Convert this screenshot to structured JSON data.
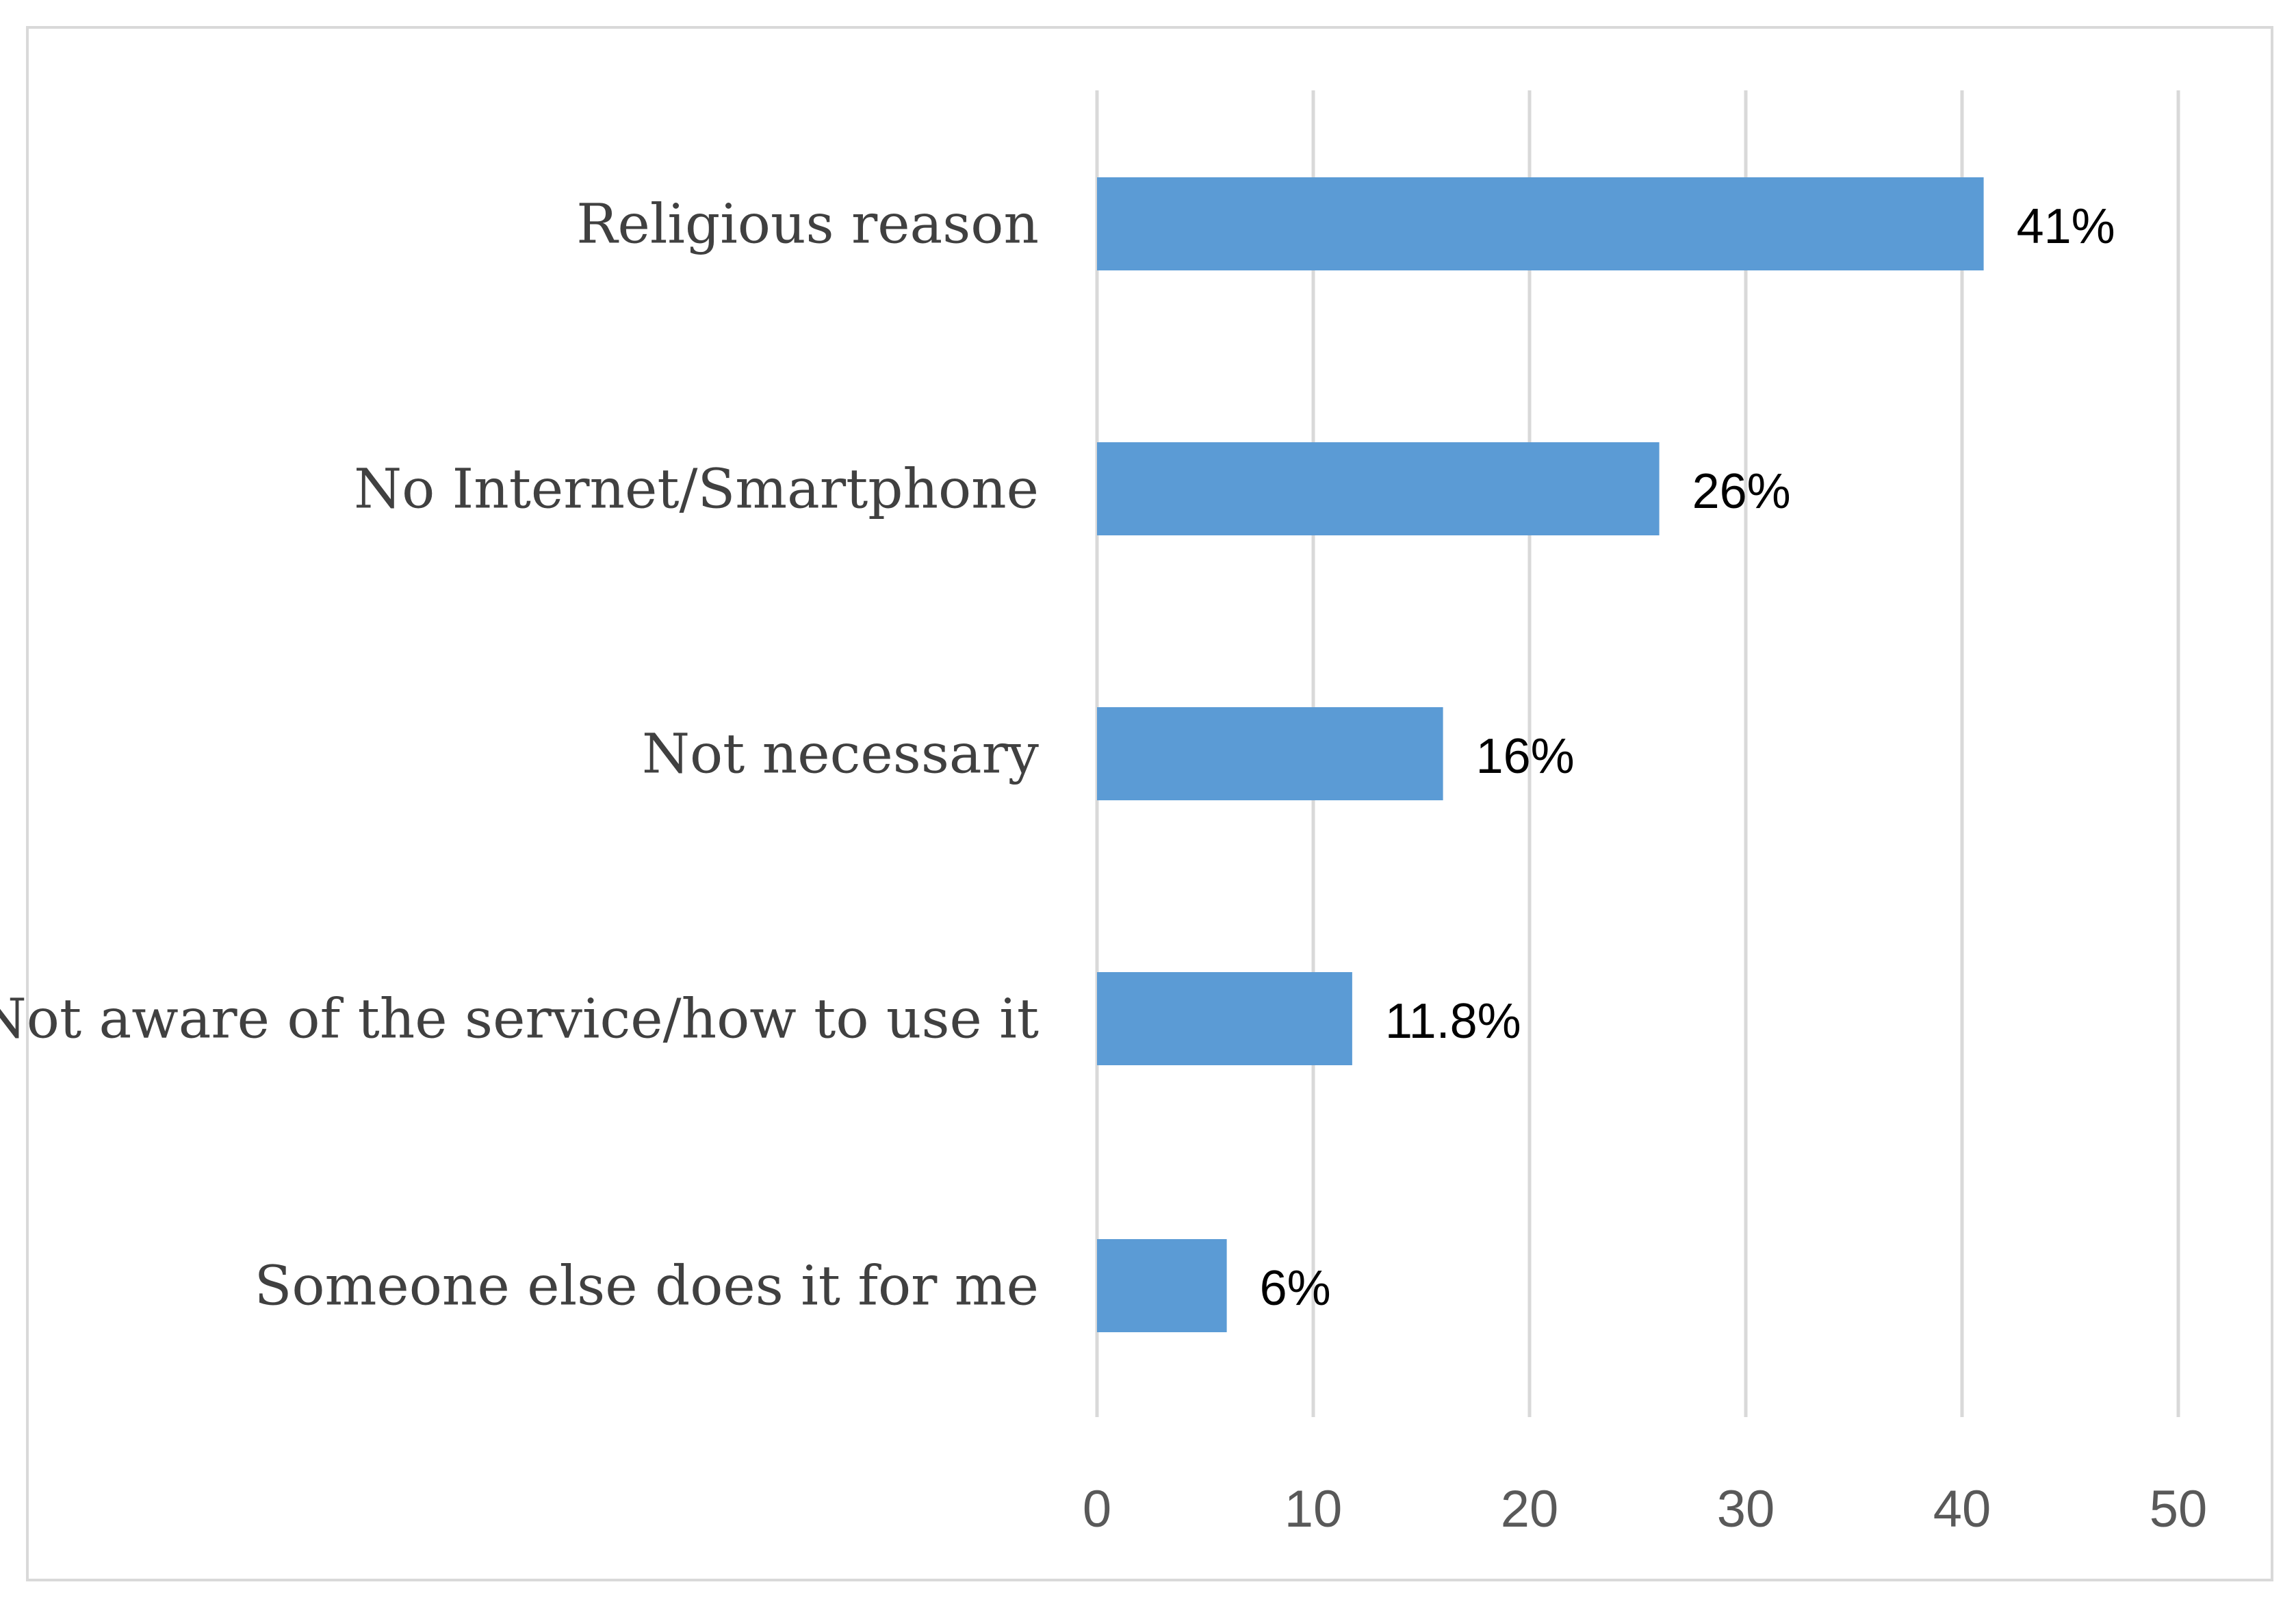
{
  "chart_data": {
    "type": "bar",
    "orientation": "horizontal",
    "title": "",
    "xlabel": "",
    "ylabel": "",
    "categories": [
      "Religious reason",
      "No Internet/Smartphone",
      "Not necessary",
      "Not aware of the service/how to use it",
      "Someone else does it for me"
    ],
    "values": [
      41,
      26,
      16,
      11.8,
      6
    ],
    "data_labels": [
      "41%",
      "26%",
      "16%",
      "11.8%",
      "6%"
    ],
    "xlim": [
      0,
      50
    ],
    "xticks": [
      0,
      10,
      20,
      30,
      40,
      50
    ],
    "xtick_labels": [
      "0",
      "10",
      "20",
      "30",
      "40",
      "50"
    ],
    "grid": true,
    "legend": "none",
    "colors": {
      "bar": "#5b9bd5",
      "grid": "#d9d9d9",
      "frame": "#d9d9d9",
      "category_text": "#404040",
      "tick_text": "#595959",
      "data_label_text": "#000000"
    }
  }
}
